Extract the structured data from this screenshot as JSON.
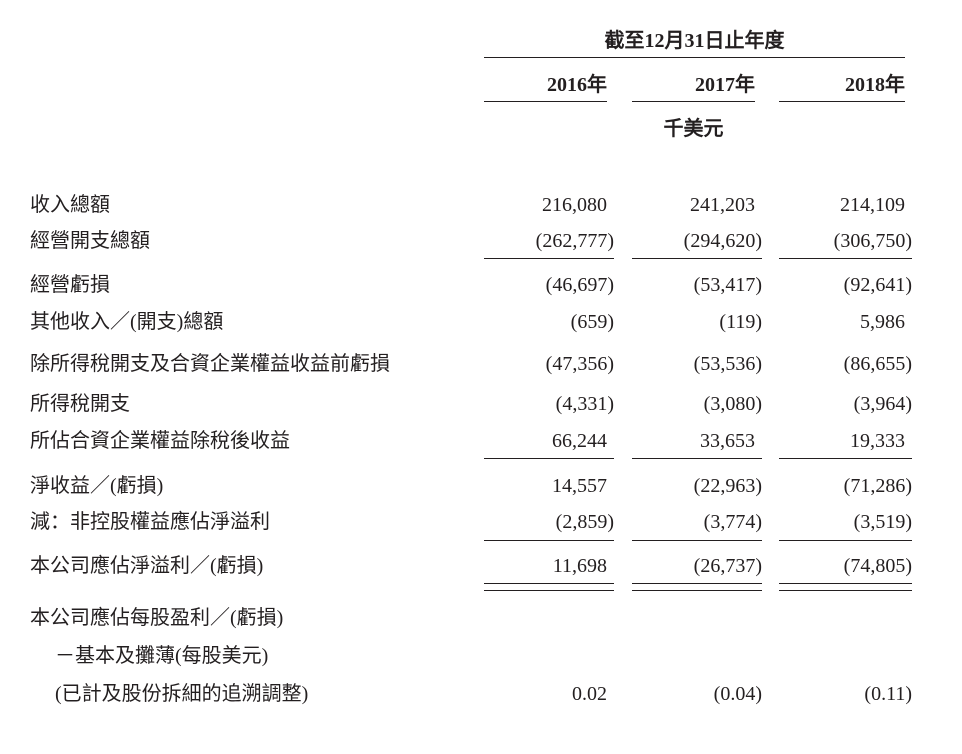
{
  "header": {
    "title": "截至12月31日止年度",
    "years": [
      "2016年",
      "2017年",
      "2018年"
    ],
    "unit": "千美元"
  },
  "rows": [
    {
      "label": "收入總額",
      "values": [
        "216,080",
        "241,203",
        "214,109"
      ]
    },
    {
      "label": "經營開支總額",
      "values": [
        "(262,777)",
        "(294,620)",
        "(306,750)"
      ]
    },
    {
      "label": "經營虧損",
      "values": [
        "(46,697)",
        "(53,417)",
        "(92,641)"
      ]
    },
    {
      "label": "其他收入／(開支)總額",
      "values": [
        "(659)",
        "(119)",
        "5,986"
      ]
    },
    {
      "label": "除所得稅開支及合資企業權益收益前虧損",
      "values": [
        "(47,356)",
        "(53,536)",
        "(86,655)"
      ]
    },
    {
      "label": "所得稅開支",
      "values": [
        "(4,331)",
        "(3,080)",
        "(3,964)"
      ]
    },
    {
      "label": "所佔合資企業權益除稅後收益",
      "values": [
        "66,244",
        "33,653",
        "19,333"
      ]
    },
    {
      "label": "淨收益／(虧損)",
      "values": [
        "14,557",
        "(22,963)",
        "(71,286)"
      ]
    },
    {
      "label": "減：非控股權益應佔淨溢利",
      "values": [
        "(2,859)",
        "(3,774)",
        "(3,519)"
      ]
    },
    {
      "label": "本公司應佔淨溢利／(虧損)",
      "values": [
        "11,698",
        "(26,737)",
        "(74,805)"
      ]
    }
  ],
  "eps": {
    "labels": [
      "本公司應佔每股盈利／(虧損)",
      "－基本及攤薄(每股美元)",
      "(已計及股份拆細的追溯調整)"
    ],
    "values": [
      "0.02",
      "(0.04)",
      "(0.11)"
    ]
  }
}
